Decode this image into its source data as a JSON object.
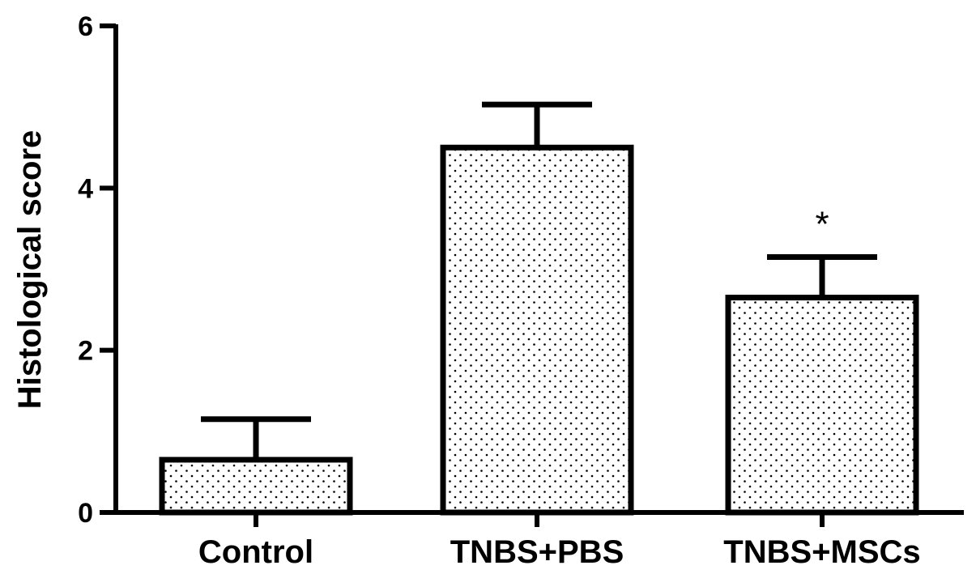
{
  "chart_data": {
    "type": "bar",
    "categories": [
      "Control",
      "TNBS+PBS",
      "TNBS+MSCs"
    ],
    "values": [
      0.65,
      4.5,
      2.65
    ],
    "errors": [
      0.5,
      0.53,
      0.5
    ],
    "annotations": [
      "",
      "",
      "*"
    ],
    "ylabel": "Histological score",
    "xlabel": "",
    "ylim": [
      0,
      6
    ],
    "yticks": [
      0,
      2,
      4,
      6
    ],
    "grid": false,
    "legend": "none",
    "bar_fill": "#ffffff",
    "bar_pattern": "dots",
    "color": "#000000"
  }
}
